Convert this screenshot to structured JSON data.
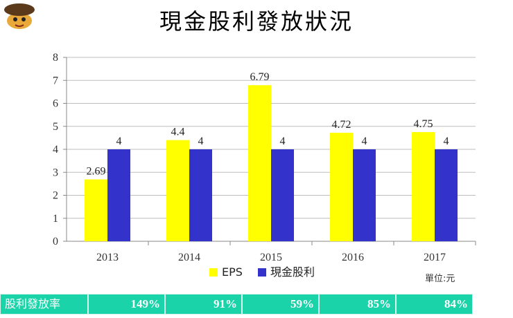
{
  "page_title": "現金股利發放狀況",
  "unit_label": "單位:元",
  "colors": {
    "eps": "#ffff00",
    "dividend": "#3333cc",
    "table_bg": "#1ad3a8"
  },
  "chart_data": {
    "type": "bar",
    "title": "現金股利發放狀況",
    "categories": [
      "2013",
      "2014",
      "2015",
      "2016",
      "2017"
    ],
    "series": [
      {
        "name": "EPS",
        "values": [
          2.69,
          4.4,
          6.79,
          4.72,
          4.75
        ],
        "labels": [
          "2.69",
          "4.4",
          "6.79",
          "4.72",
          "4.75"
        ]
      },
      {
        "name": "現金股利",
        "values": [
          4,
          4,
          4,
          4,
          4
        ],
        "labels": [
          "4",
          "4",
          "4",
          "4",
          "4"
        ]
      }
    ],
    "ylim": [
      0,
      8
    ],
    "yticks": [
      0,
      1,
      2,
      3,
      4,
      5,
      6,
      7,
      8
    ],
    "legend_position": "bottom",
    "grid": true
  },
  "payout_table": {
    "header": "股利發放率",
    "values": [
      "149%",
      "91%",
      "59%",
      "85%",
      "84%"
    ]
  }
}
